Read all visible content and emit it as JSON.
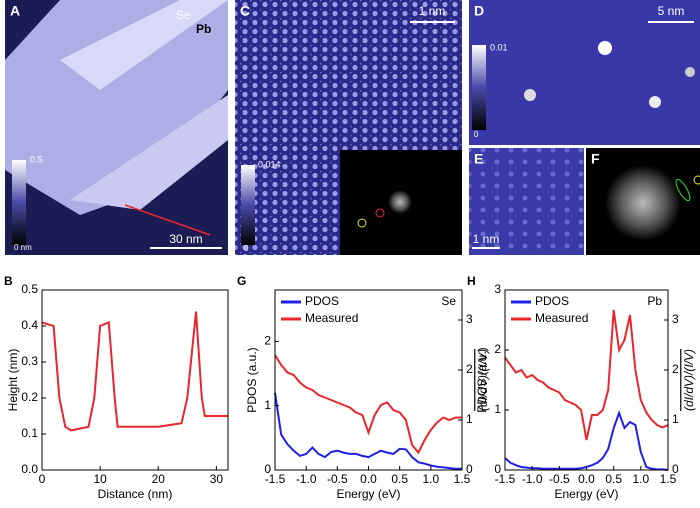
{
  "images": [
    {
      "label": "A",
      "texts": [
        "Se",
        "Pb"
      ],
      "scale_bar": "30 nm",
      "colorbar_max": "0.5",
      "colorbar_min": "0 nm"
    },
    {
      "label": "C",
      "scale_bar": "1 nm",
      "colorbar_max": "0.014",
      "colorbar_min": "0"
    },
    {
      "label": "D",
      "scale_bar": "5 nm",
      "colorbar_max": "0.01",
      "colorbar_min": "0"
    },
    {
      "label": "E",
      "scale_bar": "1 nm"
    },
    {
      "label": "F"
    }
  ],
  "chart_data": [
    {
      "type": "line",
      "panel": "B",
      "xlabel": "Distance (nm)",
      "ylabel": "Height (nm)",
      "x": [
        0,
        2,
        3,
        4,
        5,
        8,
        9,
        10,
        11.5,
        12.5,
        13,
        20,
        24,
        25,
        26.5,
        27.5,
        28,
        30,
        32
      ],
      "series": [
        {
          "name": "Height",
          "color": "#e8262b",
          "values": [
            0.41,
            0.4,
            0.2,
            0.12,
            0.11,
            0.12,
            0.2,
            0.4,
            0.41,
            0.2,
            0.12,
            0.12,
            0.13,
            0.2,
            0.44,
            0.2,
            0.15,
            0.15,
            0.15
          ]
        }
      ],
      "xlim": [
        0,
        32
      ],
      "xticks": [
        0,
        10,
        20,
        30
      ],
      "ylim": [
        0,
        0.5
      ],
      "yticks": [
        {
          "value": 0,
          "label": "0.0"
        },
        0.1,
        0.2,
        0.3,
        0.4,
        0.5
      ]
    },
    {
      "type": "line",
      "panel": "G",
      "annotation": "Se",
      "xlabel": "Energy (eV)",
      "ylabel": "PDOS (a.u.)",
      "y2label": "(dI/dV)/(I/V)",
      "x": [
        -1.5,
        -1.4,
        -1.3,
        -1.2,
        -1.1,
        -1.0,
        -0.9,
        -0.8,
        -0.7,
        -0.6,
        -0.5,
        -0.4,
        -0.3,
        -0.2,
        -0.1,
        0,
        0.1,
        0.2,
        0.3,
        0.4,
        0.5,
        0.6,
        0.7,
        0.8,
        0.9,
        1.0,
        1.1,
        1.2,
        1.3,
        1.4,
        1.5
      ],
      "series": [
        {
          "name": "PDOS",
          "color": "#1f1fe8",
          "values": [
            1.2,
            0.55,
            0.4,
            0.3,
            0.22,
            0.25,
            0.35,
            0.25,
            0.2,
            0.28,
            0.3,
            0.27,
            0.25,
            0.25,
            0.22,
            0.2,
            0.25,
            0.3,
            0.27,
            0.25,
            0.33,
            0.32,
            0.2,
            0.12,
            0.1,
            0.07,
            0.05,
            0.04,
            0.03,
            0.02,
            0.02
          ]
        },
        {
          "name": "Measured",
          "color": "#e8262b",
          "axis": "y2",
          "values": [
            2.3,
            2.1,
            1.95,
            1.9,
            1.75,
            1.65,
            1.6,
            1.5,
            1.45,
            1.4,
            1.35,
            1.3,
            1.25,
            1.15,
            1.1,
            0.75,
            1.1,
            1.3,
            1.35,
            1.2,
            1.15,
            1.0,
            0.5,
            0.35,
            0.6,
            0.8,
            0.95,
            1.05,
            1.0,
            1.05,
            1.05
          ]
        }
      ],
      "xlim": [
        -1.5,
        1.5
      ],
      "xticks": [
        -1.5,
        {
          "value": -1,
          "label": "-1.0"
        },
        -0.5,
        {
          "value": 0,
          "label": "0.0"
        },
        0.5,
        {
          "value": 1,
          "label": "1.0"
        },
        1.5
      ],
      "ylim": [
        0,
        2.8
      ],
      "yticks": [
        0,
        1,
        2
      ],
      "y2lim": [
        0,
        3.6
      ],
      "y2ticks": [
        0,
        1,
        2,
        3
      ]
    },
    {
      "type": "line",
      "panel": "H",
      "annotation": "Pb",
      "xlabel": "Energy (eV)",
      "ylabel": "PDOS (a.u.)",
      "y2label": "(dI/dV)/(I/V)",
      "x": [
        -1.5,
        -1.4,
        -1.3,
        -1.2,
        -1.1,
        -1.0,
        -0.9,
        -0.8,
        -0.7,
        -0.6,
        -0.5,
        -0.4,
        -0.3,
        -0.2,
        -0.1,
        0,
        0.1,
        0.2,
        0.3,
        0.4,
        0.5,
        0.6,
        0.7,
        0.8,
        0.9,
        1.0,
        1.1,
        1.2,
        1.3,
        1.4,
        1.5
      ],
      "series": [
        {
          "name": "PDOS",
          "color": "#1f1fe8",
          "values": [
            0.2,
            0.12,
            0.08,
            0.05,
            0.04,
            0.03,
            0.03,
            0.02,
            0.02,
            0.02,
            0.02,
            0.02,
            0.02,
            0.02,
            0.03,
            0.05,
            0.08,
            0.12,
            0.2,
            0.35,
            0.7,
            0.95,
            0.7,
            0.8,
            0.75,
            0.3,
            0.05,
            0.02,
            0.01,
            0.01,
            0
          ]
        },
        {
          "name": "Measured",
          "color": "#e8262b",
          "axis": "y2",
          "values": [
            2.25,
            2.1,
            1.95,
            2.0,
            1.85,
            1.9,
            1.8,
            1.75,
            1.65,
            1.6,
            1.55,
            1.4,
            1.35,
            1.3,
            1.2,
            0.6,
            1.1,
            1.1,
            1.2,
            1.6,
            3.2,
            2.4,
            2.6,
            3.1,
            2.0,
            1.4,
            1.15,
            1.0,
            0.9,
            0.85,
            0.9
          ]
        }
      ],
      "xlim": [
        -1.5,
        1.5
      ],
      "xticks": [
        -1.5,
        {
          "value": -1,
          "label": "-1.0"
        },
        -0.5,
        {
          "value": 0,
          "label": "0.0"
        },
        0.5,
        {
          "value": 1,
          "label": "1.0"
        },
        1.5
      ],
      "ylim": [
        0,
        3
      ],
      "yticks": [
        0,
        1,
        2,
        3
      ],
      "y2lim": [
        0,
        3.6
      ],
      "y2ticks": [
        0,
        1,
        2,
        3
      ]
    }
  ]
}
